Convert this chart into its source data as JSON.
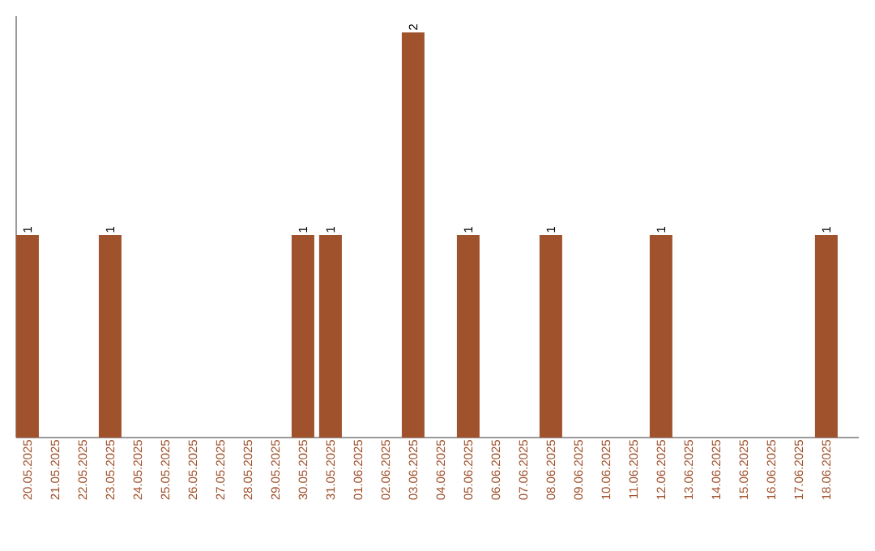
{
  "chart_data": {
    "type": "bar",
    "categories": [
      "20.05.2025",
      "21.05.2025",
      "22.05.2025",
      "23.05.2025",
      "24.05.2025",
      "25.05.2025",
      "26.05.2025",
      "27.05.2025",
      "28.05.2025",
      "29.05.2025",
      "30.05.2025",
      "31.05.2025",
      "01.06.2025",
      "02.06.2025",
      "03.06.2025",
      "04.06.2025",
      "05.06.2025",
      "06.06.2025",
      "07.06.2025",
      "08.06.2025",
      "09.06.2025",
      "10.06.2025",
      "11.06.2025",
      "12.06.2025",
      "13.06.2025",
      "14.06.2025",
      "15.06.2025",
      "16.06.2025",
      "17.06.2025",
      "18.06.2025"
    ],
    "values": [
      1,
      0,
      0,
      1,
      0,
      0,
      0,
      0,
      0,
      0,
      1,
      1,
      0,
      0,
      2,
      0,
      1,
      0,
      0,
      1,
      0,
      0,
      0,
      1,
      0,
      0,
      0,
      0,
      0,
      1
    ],
    "value_labels": [
      "1",
      null,
      null,
      "1",
      null,
      null,
      null,
      null,
      null,
      null,
      "1",
      "1",
      null,
      null,
      "2",
      null,
      "1",
      null,
      null,
      "1",
      null,
      null,
      null,
      "1",
      null,
      null,
      null,
      null,
      null,
      "1"
    ],
    "color": "#a0522d",
    "tick_labels": "x"
  }
}
